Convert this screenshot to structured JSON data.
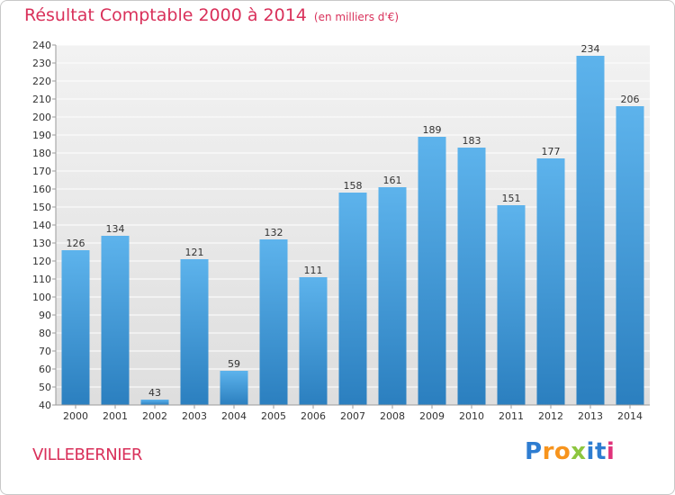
{
  "header": {
    "title": "Résultat Comptable 2000 à 2014",
    "unit": "(en milliers d'€)"
  },
  "footer": {
    "city": "VILLEBERNIER",
    "brand": "Proxiti"
  },
  "colors": {
    "title": "#d9305a",
    "bar_top": "#5db3ec",
    "bar_bottom": "#2b7fbf",
    "plot_bg": "#e8e8e8",
    "brand_letters": [
      "#2e7dd1",
      "#f7941d",
      "#f7941d",
      "#8dc63f",
      "#2e7dd1",
      "#2e7dd1",
      "#e0337b"
    ]
  },
  "chart_data": {
    "type": "bar",
    "title": "Résultat Comptable 2000 à 2014",
    "subtitle": "(en milliers d'€)",
    "xlabel": "",
    "ylabel": "",
    "categories": [
      "2000",
      "2001",
      "2002",
      "2003",
      "2004",
      "2005",
      "2006",
      "2007",
      "2008",
      "2009",
      "2010",
      "2011",
      "2012",
      "2013",
      "2014"
    ],
    "values": [
      126,
      134,
      43,
      121,
      59,
      132,
      111,
      158,
      161,
      189,
      183,
      151,
      177,
      234,
      206
    ],
    "ylim": [
      40,
      240
    ],
    "ytick_step": 10,
    "grid": true
  }
}
